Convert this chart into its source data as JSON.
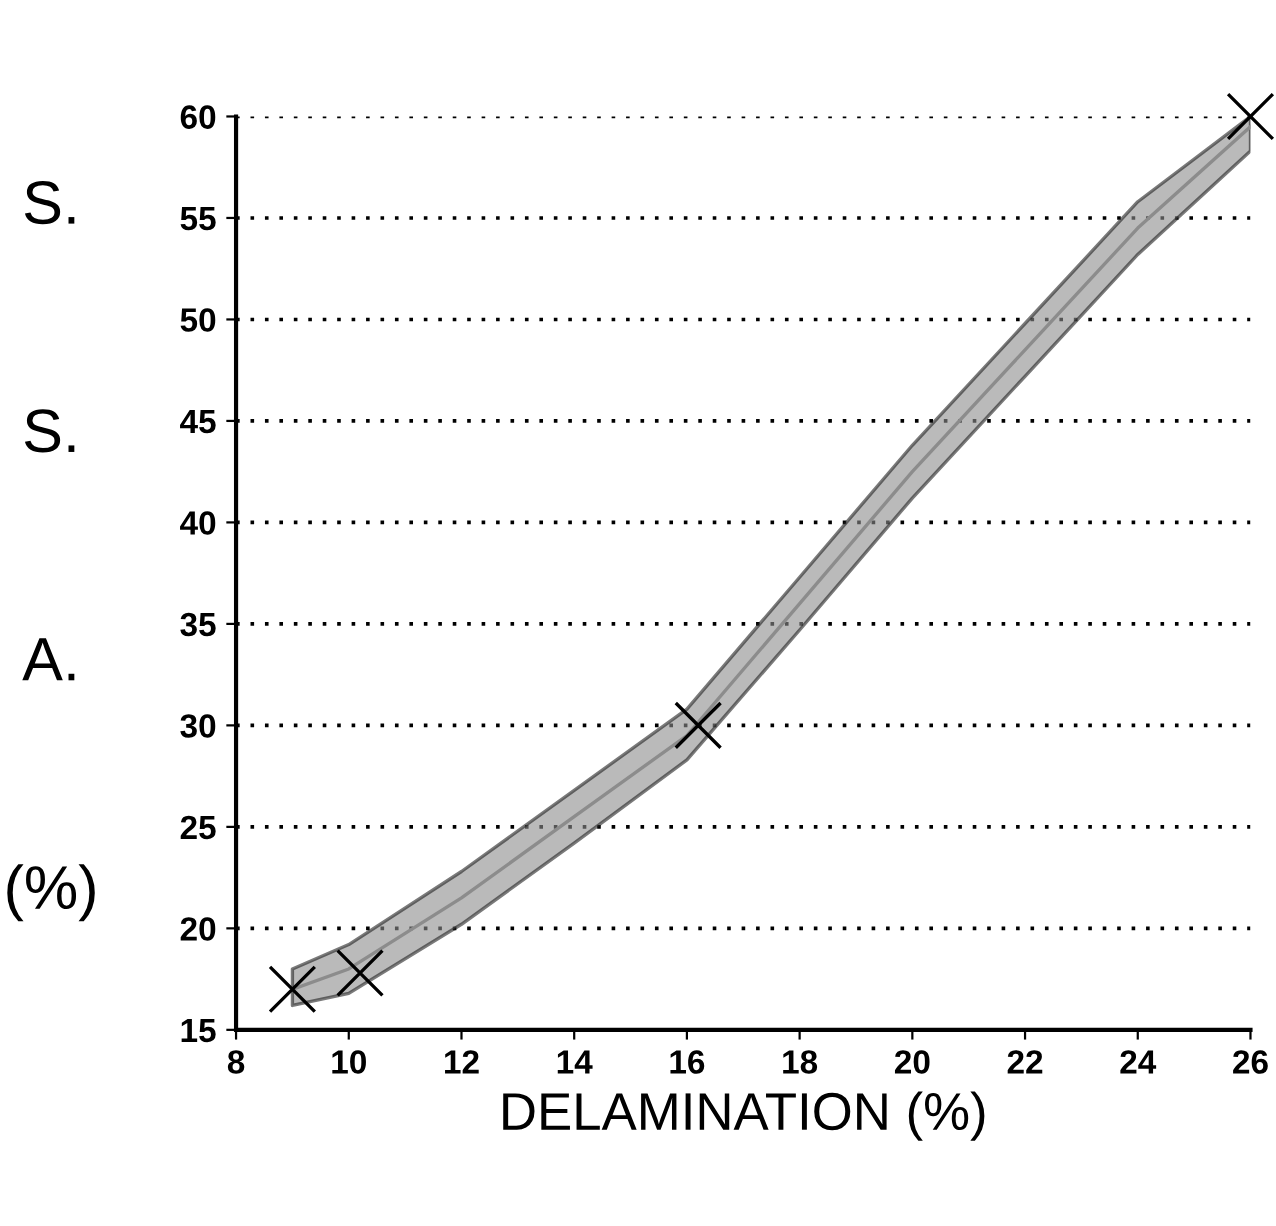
{
  "chart_data": {
    "type": "line",
    "xlabel": "DELAMINATION (%)",
    "ylabel": "S. S. A. (%)",
    "xlim": [
      8,
      26
    ],
    "xticks": [
      8,
      10,
      12,
      14,
      16,
      18,
      20,
      22,
      24,
      26
    ],
    "ylim": [
      15,
      60
    ],
    "yticks": [
      15,
      20,
      25,
      30,
      35,
      40,
      45,
      50,
      55,
      60
    ],
    "grid": "y",
    "series": [
      {
        "color": "#8c8c8c",
        "x": [
          9,
          10,
          12,
          14,
          16,
          18,
          20,
          22,
          24,
          26
        ],
        "values": [
          17,
          18,
          21.5,
          25.5,
          29.5,
          36,
          42.5,
          48.5,
          54.5,
          59.5
        ],
        "lower": [
          16.2,
          16.8,
          20.2,
          24.2,
          28.3,
          34.7,
          41.2,
          47.2,
          53.2,
          58.3
        ],
        "upper": [
          18,
          19.2,
          22.8,
          26.8,
          30.8,
          37.3,
          43.8,
          49.8,
          55.8,
          60
        ],
        "marker": "none"
      },
      {
        "type": "scatter",
        "color": "#000000",
        "x": [
          9,
          10.2,
          16.2,
          26
        ],
        "values": [
          17,
          17.8,
          30,
          60
        ],
        "marker": "cross"
      }
    ]
  }
}
